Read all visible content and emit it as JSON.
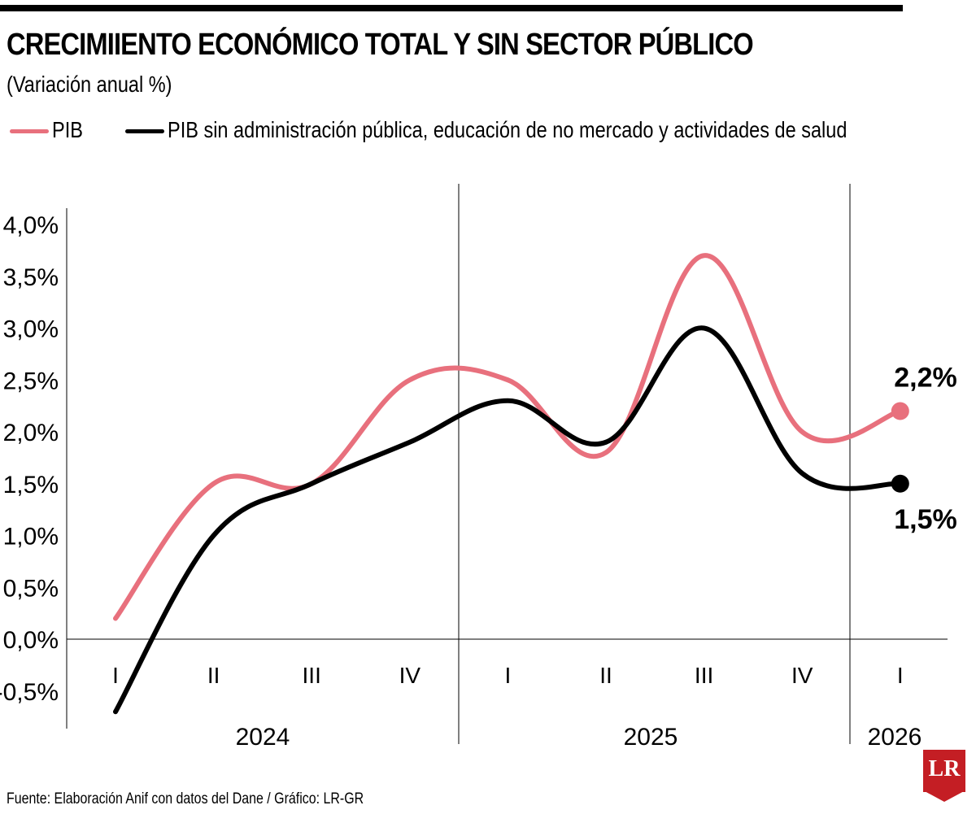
{
  "header": {
    "title": "CRECIMIIENTO ECONÓMICO TOTAL Y SIN SECTOR PÚBLICO",
    "subtitle": "(Variación anual %)"
  },
  "legend": [
    {
      "label": "PIB",
      "color": "#e8707d"
    },
    {
      "label": "PIB sin administración pública, educación de no mercado y actividades de salud",
      "color": "#000000"
    }
  ],
  "footer": {
    "source": "Fuente: Elaboración Anif con datos del Dane / Gráfico: LR-GR",
    "logo_text": "LR"
  },
  "chart_data": {
    "type": "line",
    "title": "CRECIMIIENTO ECONÓMICO TOTAL Y SIN SECTOR PÚBLICO",
    "subtitle": "(Variación anual %)",
    "xlabel": "",
    "ylabel": "",
    "categories": [
      "I",
      "II",
      "III",
      "IV",
      "I",
      "II",
      "III",
      "IV",
      "I"
    ],
    "year_groups": [
      {
        "label": "2024",
        "quarters": 4
      },
      {
        "label": "2025",
        "quarters": 4
      },
      {
        "label": "2026",
        "quarters": 1
      }
    ],
    "ylim": [
      -0.5,
      4.0
    ],
    "yticks": [
      "4,0%",
      "3,5%",
      "3,0%",
      "2,5%",
      "2,0%",
      "1,5%",
      "1,0%",
      "0,5%",
      "0,0%",
      "-0,5%"
    ],
    "ytick_values": [
      4.0,
      3.5,
      3.0,
      2.5,
      2.0,
      1.5,
      1.0,
      0.5,
      0.0,
      -0.5
    ],
    "series": [
      {
        "name": "PIB",
        "color": "#e8707d",
        "values": [
          0.2,
          1.5,
          1.5,
          2.5,
          2.5,
          1.8,
          3.7,
          2.0,
          2.2
        ],
        "end_label": "2,2%"
      },
      {
        "name": "PIB sin administración pública, educación de no mercado y actividades de salud",
        "color": "#000000",
        "values": [
          -0.7,
          1.0,
          1.5,
          1.9,
          2.3,
          1.9,
          3.0,
          1.6,
          1.5
        ],
        "end_label": "1,5%"
      }
    ],
    "grid": false
  }
}
